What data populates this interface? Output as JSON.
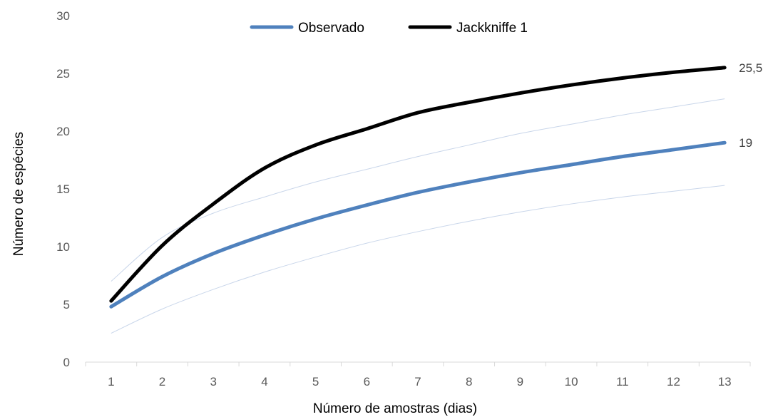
{
  "chart_data": {
    "type": "line",
    "title": "",
    "xlabel": "Número de amostras (dias)",
    "ylabel": "Número de espécies",
    "x": [
      1,
      2,
      3,
      4,
      5,
      6,
      7,
      8,
      9,
      10,
      11,
      12,
      13
    ],
    "x_tick_labels": [
      "1",
      "2",
      "3",
      "4",
      "5",
      "6",
      "7",
      "8",
      "9",
      "10",
      "11",
      "12",
      "13"
    ],
    "y_ticks": [
      "0",
      "5",
      "10",
      "15",
      "20",
      "25",
      "30"
    ],
    "ylim": [
      0,
      30
    ],
    "grid": false,
    "legend_position": "top",
    "series": [
      {
        "name": "Observado",
        "color": "#4f81bd",
        "values": [
          4.8,
          7.4,
          9.4,
          11.0,
          12.4,
          13.6,
          14.7,
          15.6,
          16.4,
          17.1,
          17.8,
          18.4,
          19.0
        ],
        "end_label": "19"
      },
      {
        "name": "Jackkniffe 1",
        "color": "#000000",
        "values": [
          5.3,
          10.1,
          13.7,
          16.8,
          18.8,
          20.2,
          21.6,
          22.5,
          23.3,
          24.0,
          24.6,
          25.1,
          25.5
        ],
        "end_label": "25,5"
      }
    ],
    "confidence_band": {
      "color": "#c9d6ea",
      "upper": [
        7.0,
        10.8,
        12.9,
        14.3,
        15.6,
        16.7,
        17.8,
        18.8,
        19.8,
        20.6,
        21.4,
        22.1,
        22.8
      ],
      "lower": [
        2.5,
        4.6,
        6.3,
        7.8,
        9.1,
        10.3,
        11.3,
        12.2,
        13.0,
        13.7,
        14.3,
        14.8,
        15.3
      ]
    }
  }
}
